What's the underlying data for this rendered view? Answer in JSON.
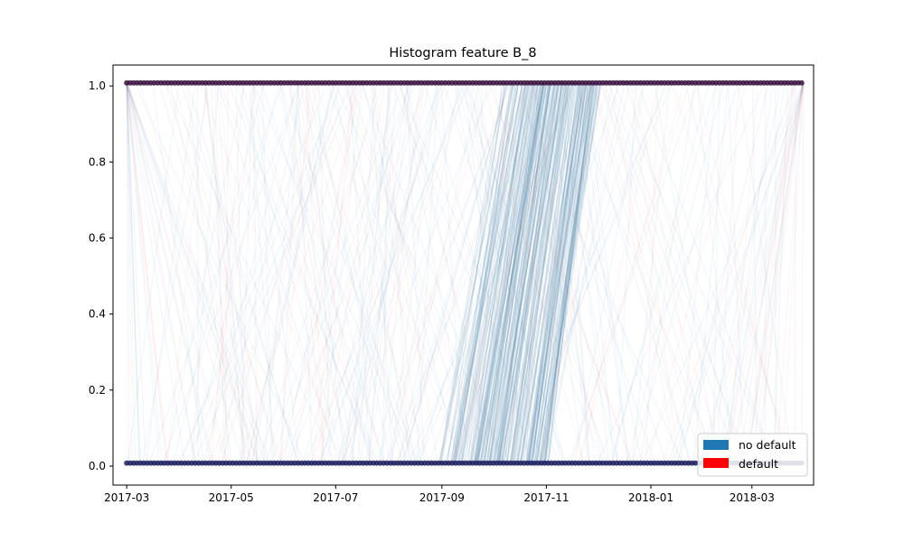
{
  "chart_data": {
    "type": "line",
    "title": "Histogram feature B_8",
    "xlabel": "",
    "ylabel": "",
    "x_axis_type": "date",
    "xlim": [
      "2017-02-21",
      "2018-04-06"
    ],
    "ylim": [
      -0.05,
      1.055
    ],
    "x_ticks": [
      "2017-03",
      "2017-05",
      "2017-07",
      "2017-09",
      "2017-11",
      "2018-01",
      "2018-03"
    ],
    "x_tick_dates": [
      "2017-03-01",
      "2017-05-01",
      "2017-07-01",
      "2017-09-01",
      "2017-11-01",
      "2018-01-01",
      "2018-03-01"
    ],
    "y_ticks": [
      "0.0",
      "0.2",
      "0.4",
      "0.6",
      "0.8",
      "1.0"
    ],
    "y_tick_values": [
      0.0,
      0.2,
      0.4,
      0.6,
      0.8,
      1.0
    ],
    "grid": false,
    "legend_position": "bottom-right",
    "series": [
      {
        "name": "no default",
        "color": "#1f77b4",
        "values_at_start": 0.0,
        "values_at_end": 1.0,
        "point_range_low": [
          "2017-03-01",
          "2018-03-31"
        ],
        "point_range_high": [
          "2017-03-01",
          "2018-03-31"
        ],
        "transition_cluster": {
          "y0_dates": [
            "2017-09-01",
            "2017-11-01"
          ],
          "y1_dates": [
            "2017-10-10",
            "2017-12-01"
          ]
        }
      },
      {
        "name": "default",
        "color": "#ff0000",
        "values_at_start": 0.0,
        "values_at_end": 1.0,
        "point_range_low": [
          "2017-03-01",
          "2018-03-31"
        ],
        "point_range_high": [
          "2017-03-01",
          "2018-03-31"
        ]
      }
    ],
    "point_colors": {
      "low": "#1b1f5e",
      "high": "#3a1040"
    }
  }
}
